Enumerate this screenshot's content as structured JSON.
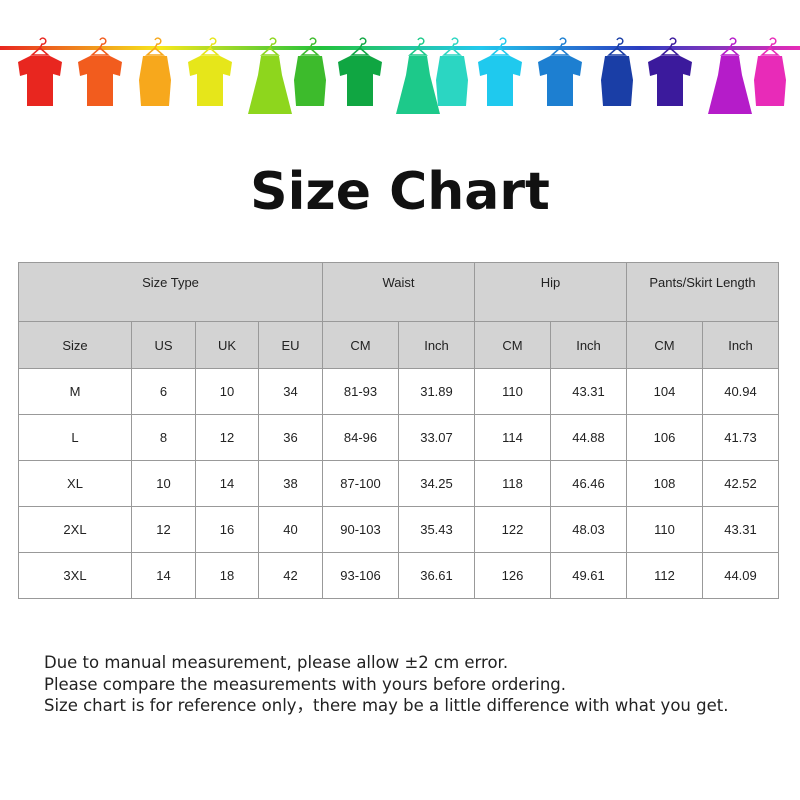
{
  "banner": {
    "colors": [
      "#e8261f",
      "#f25c1e",
      "#f7a81c",
      "#e6e61a",
      "#8ed61d",
      "#3dbb2c",
      "#10a642",
      "#1dc98a",
      "#2bd6c2",
      "#1fc9ee",
      "#1d7fd1",
      "#1a3ea6",
      "#3b1a9c",
      "#b51cc9",
      "#e82bb8"
    ],
    "rod_gradient": [
      "#e8261f",
      "#f7e81c",
      "#22c23a",
      "#22c9ee",
      "#2a3cc0",
      "#e82bb8"
    ]
  },
  "title": "Size Chart",
  "table": {
    "group_headers": [
      "Size Type",
      "Waist",
      "Hip",
      "Pants/Skirt Length"
    ],
    "column_headers": [
      "Size",
      "US",
      "UK",
      "EU",
      "CM",
      "Inch",
      "CM",
      "Inch",
      "CM",
      "Inch"
    ],
    "rows": [
      [
        "M",
        "6",
        "10",
        "34",
        "81-93",
        "31.89",
        "110",
        "43.31",
        "104",
        "40.94"
      ],
      [
        "L",
        "8",
        "12",
        "36",
        "84-96",
        "33.07",
        "114",
        "44.88",
        "106",
        "41.73"
      ],
      [
        "XL",
        "10",
        "14",
        "38",
        "87-100",
        "34.25",
        "118",
        "46.46",
        "108",
        "42.52"
      ],
      [
        "2XL",
        "12",
        "16",
        "40",
        "90-103",
        "35.43",
        "122",
        "48.03",
        "110",
        "43.31"
      ],
      [
        "3XL",
        "14",
        "18",
        "42",
        "93-106",
        "36.61",
        "126",
        "49.61",
        "112",
        "44.09"
      ]
    ]
  },
  "notes": [
    "Due to manual measurement, please allow ±2 cm error.",
    "Please compare the measurements with yours before ordering.",
    "Size chart is for reference only，there may be a little difference with what you get."
  ]
}
